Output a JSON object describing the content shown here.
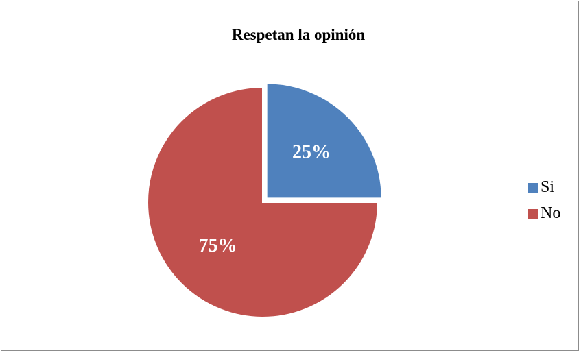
{
  "chart_data": {
    "type": "pie",
    "title": "Respetan la opinión",
    "categories": [
      "Si",
      "No"
    ],
    "values": [
      25,
      75
    ],
    "data_labels": [
      "25%",
      "75%"
    ],
    "colors": [
      "#4f81bd",
      "#c0504d"
    ],
    "legend_position": "right",
    "exploded_slice": "Si"
  }
}
